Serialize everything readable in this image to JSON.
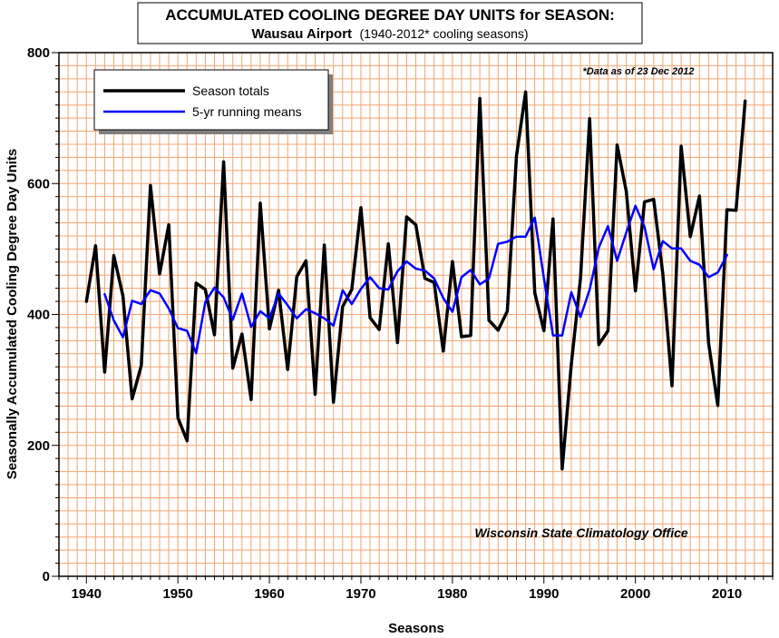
{
  "chart_data": {
    "type": "line",
    "title": "ACCUMULATED COOLING DEGREE DAY UNITS for SEASON:",
    "subtitle_bold": "Wausau Airport",
    "subtitle": "(1940-2012* cooling seasons)",
    "xlabel": "Seasons",
    "ylabel": "Seasonally Accumulated Cooling Degree Day Units",
    "xlim": [
      1937,
      2015
    ],
    "ylim": [
      0,
      800
    ],
    "x_ticks": [
      1940,
      1950,
      1960,
      1970,
      1980,
      1990,
      2000,
      2010
    ],
    "y_ticks": [
      0,
      200,
      400,
      600,
      800
    ],
    "grid": true,
    "legend_position": "top-left",
    "note": "*Data as of 23 Dec 2012",
    "credit": "Wisconsin State Climatology Office",
    "series": [
      {
        "name": "Season totals",
        "color": "#000000",
        "x": [
          1940,
          1941,
          1942,
          1943,
          1944,
          1945,
          1946,
          1947,
          1948,
          1949,
          1950,
          1951,
          1952,
          1953,
          1954,
          1955,
          1956,
          1957,
          1958,
          1959,
          1960,
          1961,
          1962,
          1963,
          1964,
          1965,
          1966,
          1967,
          1968,
          1969,
          1970,
          1971,
          1972,
          1973,
          1974,
          1975,
          1976,
          1977,
          1978,
          1979,
          1980,
          1981,
          1982,
          1983,
          1984,
          1985,
          1986,
          1987,
          1988,
          1989,
          1990,
          1991,
          1992,
          1993,
          1994,
          1995,
          1996,
          1997,
          1998,
          1999,
          2000,
          2001,
          2002,
          2003,
          2004,
          2005,
          2006,
          2007,
          2008,
          2009,
          2010,
          2011,
          2012
        ],
        "values": [
          420,
          505,
          312,
          490,
          428,
          271,
          322,
          597,
          462,
          537,
          242,
          207,
          448,
          438,
          369,
          633,
          318,
          370,
          270,
          570,
          378,
          437,
          316,
          458,
          482,
          278,
          506,
          266,
          412,
          438,
          563,
          395,
          377,
          508,
          357,
          549,
          537,
          455,
          449,
          344,
          481,
          366,
          368,
          730,
          391,
          376,
          405,
          642,
          740,
          433,
          375,
          546,
          164,
          324,
          455,
          699,
          354,
          375,
          659,
          588,
          436,
          572,
          576,
          462,
          291,
          657,
          519,
          581,
          356,
          261,
          560,
          559,
          726
        ]
      },
      {
        "name": "5-yr running means",
        "color": "#0000ff",
        "x": [
          1942,
          1943,
          1944,
          1945,
          1946,
          1947,
          1948,
          1949,
          1950,
          1951,
          1952,
          1953,
          1954,
          1955,
          1956,
          1957,
          1958,
          1959,
          1960,
          1961,
          1962,
          1963,
          1964,
          1965,
          1966,
          1967,
          1968,
          1969,
          1970,
          1971,
          1972,
          1973,
          1974,
          1975,
          1976,
          1977,
          1978,
          1979,
          1980,
          1981,
          1982,
          1983,
          1984,
          1985,
          1986,
          1987,
          1988,
          1989,
          1990,
          1991,
          1992,
          1993,
          1994,
          1995,
          1996,
          1997,
          1998,
          1999,
          2000,
          2001,
          2002,
          2003,
          2004,
          2005,
          2006,
          2007,
          2008,
          2009,
          2010
        ],
        "values": [
          431,
          391,
          365,
          421,
          416,
          437,
          432,
          409,
          379,
          375,
          341,
          419,
          441,
          426,
          392,
          432,
          381,
          405,
          394,
          432,
          414,
          394,
          408,
          402,
          394,
          383,
          437,
          416,
          439,
          457,
          440,
          438,
          466,
          481,
          470,
          467,
          455,
          425,
          404,
          457,
          468,
          446,
          455,
          508,
          511,
          519,
          519,
          548,
          455,
          368,
          368,
          434,
          396,
          438,
          502,
          535,
          482,
          525,
          566,
          534,
          469,
          512,
          501,
          501,
          482,
          476,
          457,
          464,
          491
        ]
      }
    ]
  }
}
